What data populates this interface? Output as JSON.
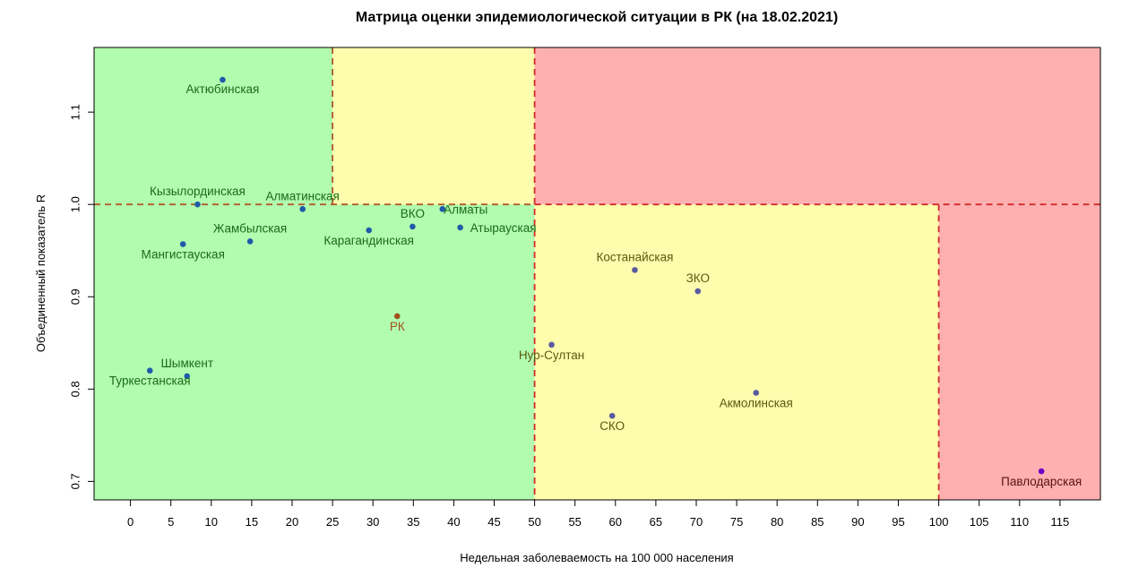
{
  "chart_data": {
    "type": "scatter",
    "title": "Матрица оценки эпидемиологической ситуации в РК (на 18.02.2021)",
    "xlabel": "Недельная заболеваемость на 100 000 населения",
    "ylabel": "Объединенный показатель R",
    "xlim": [
      -4.5,
      120
    ],
    "ylim": [
      0.68,
      1.17
    ],
    "x_ticks": [
      0,
      5,
      10,
      15,
      20,
      25,
      30,
      35,
      40,
      45,
      50,
      55,
      60,
      65,
      70,
      75,
      80,
      85,
      90,
      95,
      100,
      105,
      110,
      115
    ],
    "y_ticks": [
      0.7,
      0.8,
      0.9,
      1.0,
      1.1
    ],
    "y_tick_labels": [
      "0.7",
      "0.8",
      "0.9",
      "1.0",
      "1.1"
    ],
    "grid": false,
    "zones": [
      {
        "x": [
          -4.5,
          50
        ],
        "y": [
          0.68,
          1.17
        ],
        "color": "#b2fcb0"
      },
      {
        "x": [
          25,
          50
        ],
        "y": [
          1.0,
          1.17
        ],
        "color": "#fefdae"
      },
      {
        "x": [
          50,
          120
        ],
        "y": [
          1.0,
          1.17
        ],
        "color": "#feb0b0"
      },
      {
        "x": [
          50,
          100
        ],
        "y": [
          0.68,
          1.0
        ],
        "color": "#fefdae"
      },
      {
        "x": [
          100,
          120
        ],
        "y": [
          0.68,
          1.0
        ],
        "color": "#feb0b0"
      }
    ],
    "threshold_lines": [
      {
        "axis": "x",
        "value": 25,
        "range": [
          1.0,
          1.17
        ],
        "color": "#b05a2a"
      },
      {
        "axis": "y",
        "value": 1.0,
        "range": [
          -4.5,
          50
        ],
        "color": "#b05a2a"
      },
      {
        "axis": "x",
        "value": 50,
        "range": [
          0.68,
          1.17
        ],
        "color": "#d42a2a"
      },
      {
        "axis": "y",
        "value": 1.0,
        "range": [
          50,
          120
        ],
        "color": "#d42a2a"
      },
      {
        "axis": "x",
        "value": 100,
        "range": [
          0.68,
          1.0
        ],
        "color": "#d42a2a"
      }
    ],
    "points": [
      {
        "label": "Актюбинская",
        "x": 11.4,
        "y": 1.135,
        "color": "#1f5aa8",
        "label_color": "#1a6b1a",
        "label_dx": 0,
        "label_dy": 15
      },
      {
        "label": "Кызылординская",
        "x": 8.3,
        "y": 1.0,
        "color": "#1f5aa8",
        "label_color": "#1a6b1a",
        "label_dx": 0,
        "label_dy": -10
      },
      {
        "label": "Алматинская",
        "x": 21.3,
        "y": 0.995,
        "color": "#1f5aa8",
        "label_color": "#1a6b1a",
        "label_dx": 0,
        "label_dy": -10
      },
      {
        "label": "Жамбылская",
        "x": 14.8,
        "y": 0.96,
        "color": "#1f5aa8",
        "label_color": "#1a6b1a",
        "label_dx": 0,
        "label_dy": -10
      },
      {
        "label": "Мангистауская",
        "x": 6.5,
        "y": 0.957,
        "color": "#1f5aa8",
        "label_color": "#1a6b1a",
        "label_dx": 0,
        "label_dy": 16
      },
      {
        "label": "Карагандинская",
        "x": 29.5,
        "y": 0.972,
        "color": "#1f5aa8",
        "label_color": "#1a6b1a",
        "label_dx": 0,
        "label_dy": 16
      },
      {
        "label": "ВКО",
        "x": 34.9,
        "y": 0.976,
        "color": "#1f5aa8",
        "label_color": "#1a6b1a",
        "label_dx": 0,
        "label_dy": -10
      },
      {
        "label": "Алматы",
        "x": 38.6,
        "y": 0.995,
        "color": "#1f5aa8",
        "label_color": "#1a6b1a",
        "label_dx": 26,
        "label_dy": 5
      },
      {
        "label": "Атырауская",
        "x": 40.8,
        "y": 0.975,
        "color": "#1f5aa8",
        "label_color": "#1a6b1a",
        "label_dx": 48,
        "label_dy": 5
      },
      {
        "label": "РК",
        "x": 33.0,
        "y": 0.879,
        "color": "#a0521e",
        "label_color": "#a0521e",
        "label_dx": 0,
        "label_dy": 16
      },
      {
        "label": "Шымкент",
        "x": 7.0,
        "y": 0.814,
        "color": "#1f5aa8",
        "label_color": "#1a6b1a",
        "label_dx": 0,
        "label_dy": -10
      },
      {
        "label": "Туркестанская",
        "x": 2.4,
        "y": 0.82,
        "color": "#1f5aa8",
        "label_color": "#1a6b1a",
        "label_dx": 0,
        "label_dy": 16
      },
      {
        "label": "Нур-Султан",
        "x": 52.1,
        "y": 0.848,
        "color": "#5a5aa0",
        "label_color": "#5a5a10",
        "label_dx": 0,
        "label_dy": 16
      },
      {
        "label": "Костанайская",
        "x": 62.4,
        "y": 0.929,
        "color": "#5a5aa0",
        "label_color": "#5a5a10",
        "label_dx": 0,
        "label_dy": -10
      },
      {
        "label": "ЗКО",
        "x": 70.2,
        "y": 0.906,
        "color": "#5a5aa0",
        "label_color": "#5a5a10",
        "label_dx": 0,
        "label_dy": -10
      },
      {
        "label": "СКО",
        "x": 59.6,
        "y": 0.771,
        "color": "#5a5aa0",
        "label_color": "#5a5a10",
        "label_dx": 0,
        "label_dy": 16
      },
      {
        "label": "Акмолинская",
        "x": 77.4,
        "y": 0.796,
        "color": "#5a5aa0",
        "label_color": "#5a5a10",
        "label_dx": 0,
        "label_dy": 16
      },
      {
        "label": "Павлодарская",
        "x": 112.7,
        "y": 0.711,
        "color": "#6a00c8",
        "label_color": "#5a1010",
        "label_dx": 0,
        "label_dy": 16
      }
    ]
  }
}
